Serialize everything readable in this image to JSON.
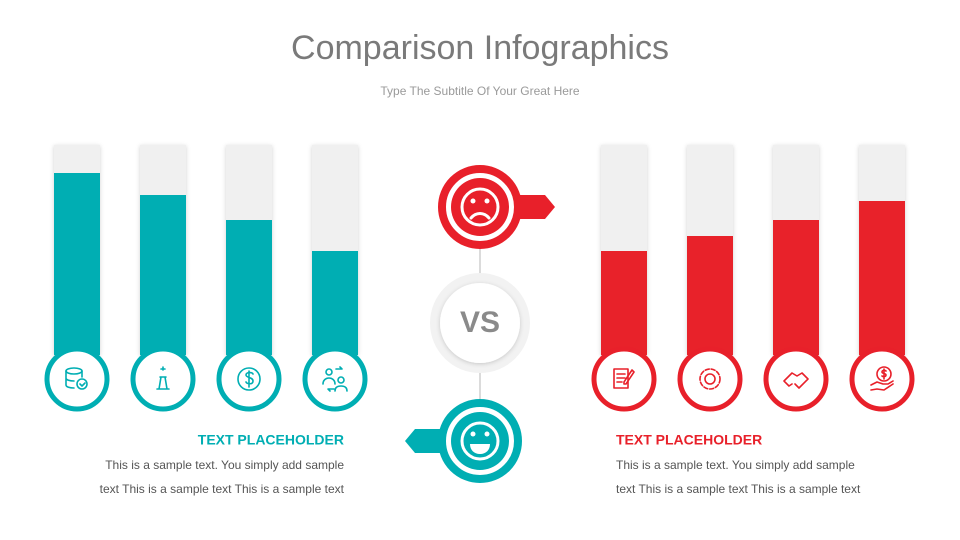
{
  "header": {
    "title": "Comparison Infographics",
    "subtitle": "Type The Subtitle Of Your Great Here"
  },
  "center": {
    "label": "VS"
  },
  "left": {
    "heading": "TEXT PLACEHOLDER",
    "lines": [
      "This is a sample text. You simply add sample",
      "text This is a sample text This is a sample text"
    ]
  },
  "right": {
    "heading": "TEXT PLACEHOLDER",
    "lines": [
      "This is a sample text. You simply add sample",
      "text This is a sample text This is a sample text"
    ]
  }
}
